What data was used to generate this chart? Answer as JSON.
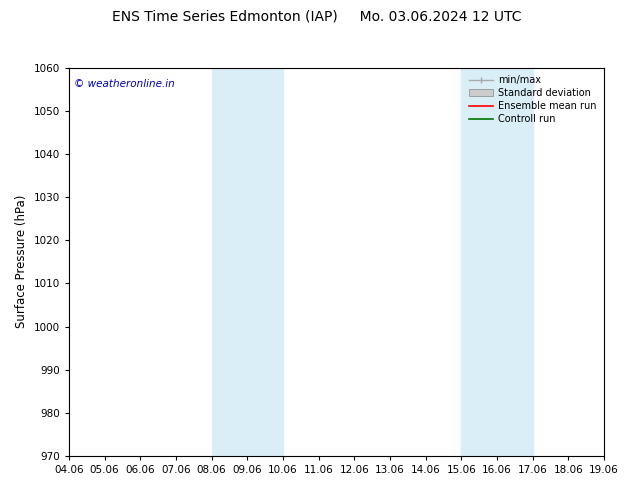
{
  "title": "ENS Time Series Edmonton (IAP)     Mo. 03.06.2024 12 UTC",
  "ylabel": "Surface Pressure (hPa)",
  "ylim": [
    970,
    1060
  ],
  "yticks": [
    970,
    980,
    990,
    1000,
    1010,
    1020,
    1030,
    1040,
    1050,
    1060
  ],
  "xtick_labels": [
    "04.06",
    "05.06",
    "06.06",
    "07.06",
    "08.06",
    "09.06",
    "10.06",
    "11.06",
    "12.06",
    "13.06",
    "14.06",
    "15.06",
    "16.06",
    "17.06",
    "18.06",
    "19.06"
  ],
  "xtick_values": [
    0,
    1,
    2,
    3,
    4,
    5,
    6,
    7,
    8,
    9,
    10,
    11,
    12,
    13,
    14,
    15
  ],
  "shaded_regions": [
    {
      "xmin": 4,
      "xmax": 6,
      "color": "#daeef8"
    },
    {
      "xmin": 11,
      "xmax": 13,
      "color": "#daeef8"
    }
  ],
  "watermark_text": "© weatheronline.in",
  "watermark_color": "#0000bb",
  "legend_entries": [
    {
      "label": "min/max",
      "type": "minmax",
      "color": "#aaaaaa"
    },
    {
      "label": "Standard deviation",
      "type": "patch",
      "color": "#cccccc"
    },
    {
      "label": "Ensemble mean run",
      "type": "line",
      "color": "#ff0000"
    },
    {
      "label": "Controll run",
      "type": "line",
      "color": "#007700"
    }
  ],
  "bg_color": "#ffffff",
  "title_fontsize": 10,
  "tick_fontsize": 7.5,
  "ylabel_fontsize": 8.5,
  "legend_fontsize": 7
}
